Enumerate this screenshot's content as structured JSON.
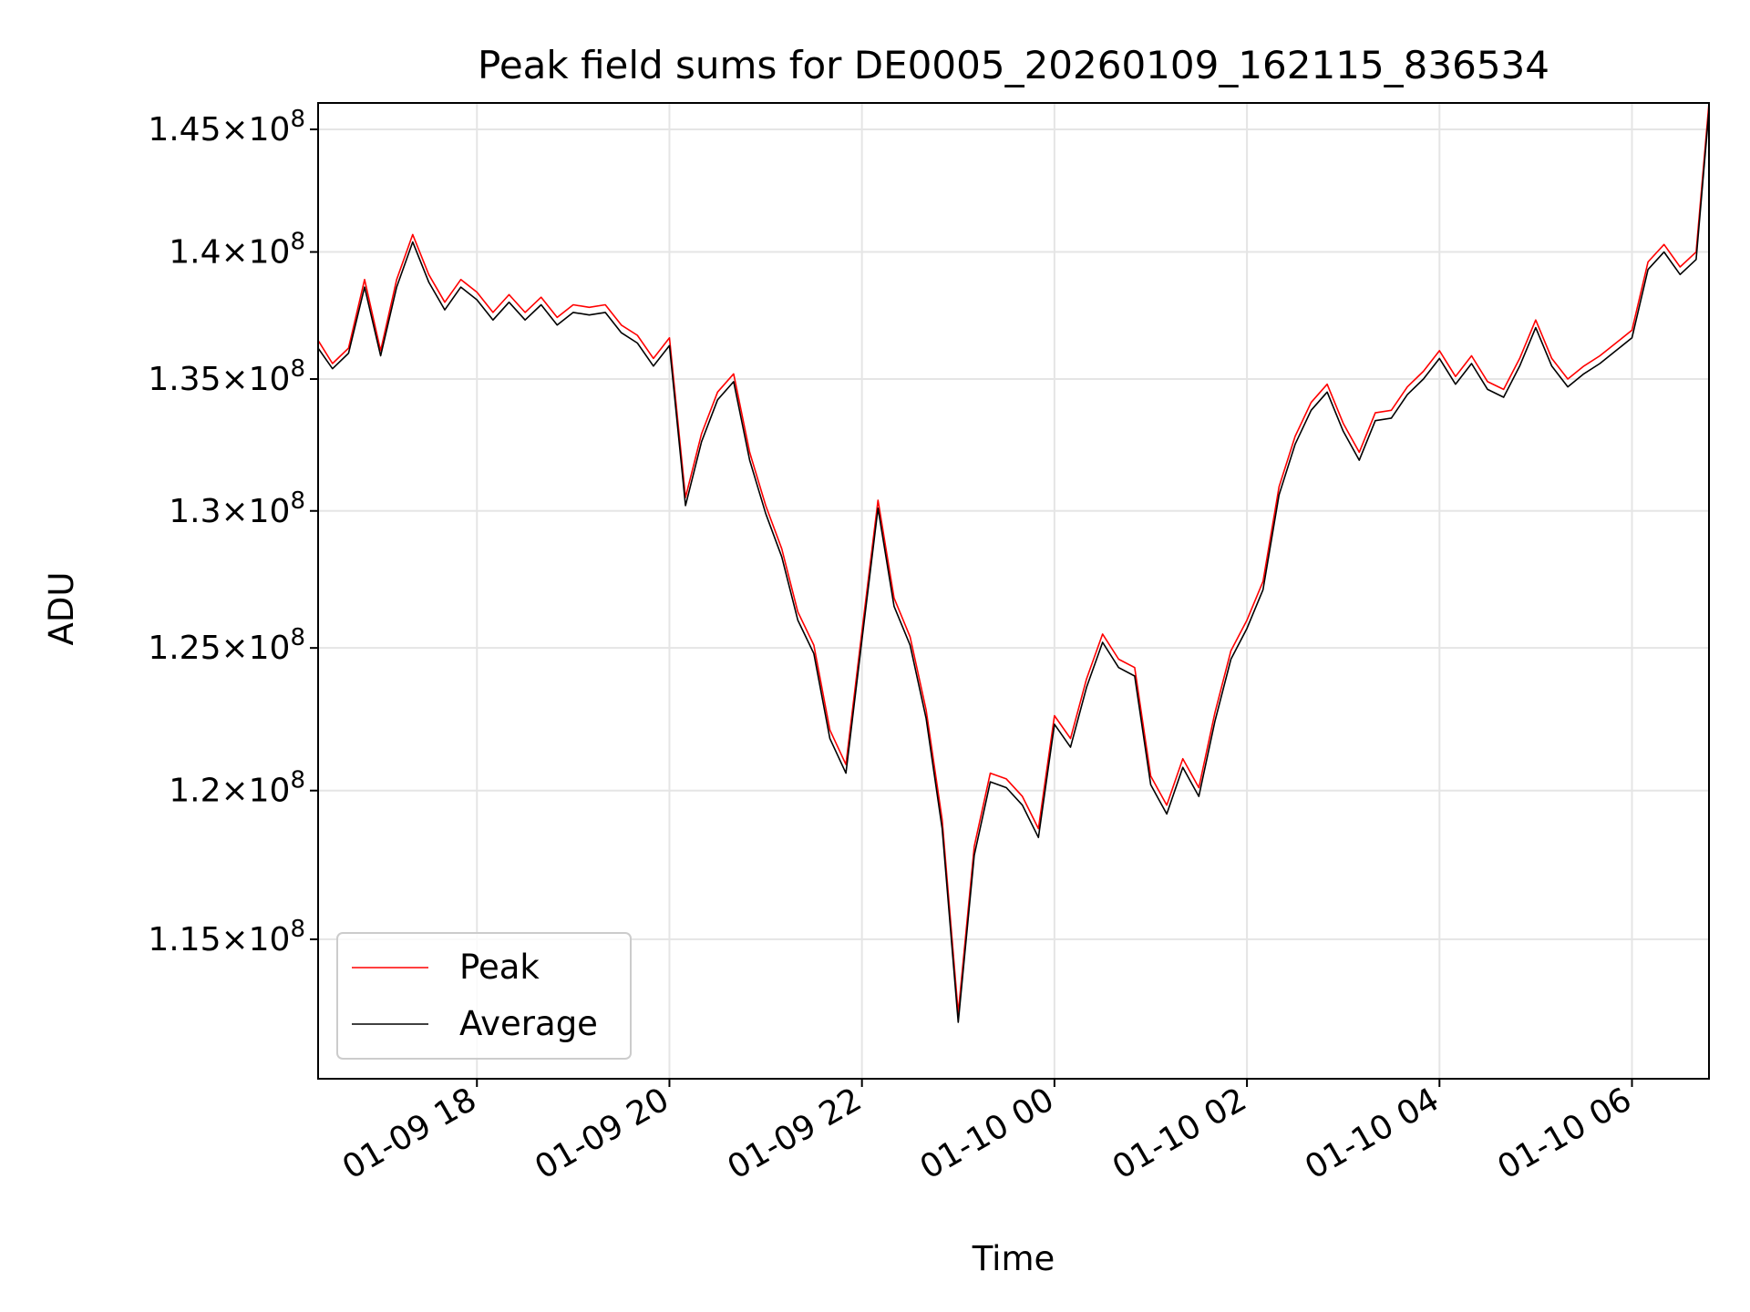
{
  "chart_data": {
    "type": "line",
    "title": "Peak field sums for DE0005_20260109_162115_836534",
    "xlabel": "Time",
    "ylabel": "ADU",
    "x_range": [
      "2026-01-09 16:21",
      "2026-01-10 06:48"
    ],
    "ylim": [
      110500000,
      146100000
    ],
    "y_scale": "log",
    "grid": true,
    "legend": "lower-left",
    "xticks": [
      "01-09 18",
      "01-09 20",
      "01-09 22",
      "01-10 00",
      "01-10 02",
      "01-10 04",
      "01-10 06"
    ],
    "ytick_values": [
      115000000,
      120000000,
      125000000,
      130000000,
      135000000,
      140000000,
      145000000
    ],
    "ytick_mantissas": [
      "1.15",
      "1.2",
      "1.25",
      "1.3",
      "1.35",
      "1.4",
      "1.45"
    ],
    "ytick_times": "×",
    "ytick_base": "10",
    "ytick_exponent": "8",
    "colors": {
      "peak": "#ff0000",
      "average": "#000000"
    },
    "series": [
      {
        "name": "Peak",
        "color": "#ff0000",
        "x": [
          "2026-01-09 16:21",
          "2026-01-09 16:30",
          "2026-01-09 16:40",
          "2026-01-09 16:50",
          "2026-01-09 17:00",
          "2026-01-09 17:10",
          "2026-01-09 17:20",
          "2026-01-09 17:30",
          "2026-01-09 17:40",
          "2026-01-09 17:50",
          "2026-01-09 18:00",
          "2026-01-09 18:10",
          "2026-01-09 18:20",
          "2026-01-09 18:30",
          "2026-01-09 18:40",
          "2026-01-09 18:50",
          "2026-01-09 19:00",
          "2026-01-09 19:10",
          "2026-01-09 19:20",
          "2026-01-09 19:30",
          "2026-01-09 19:40",
          "2026-01-09 19:50",
          "2026-01-09 20:00",
          "2026-01-09 20:10",
          "2026-01-09 20:20",
          "2026-01-09 20:30",
          "2026-01-09 20:40",
          "2026-01-09 20:50",
          "2026-01-09 21:00",
          "2026-01-09 21:10",
          "2026-01-09 21:20",
          "2026-01-09 21:30",
          "2026-01-09 21:40",
          "2026-01-09 21:50",
          "2026-01-09 22:00",
          "2026-01-09 22:10",
          "2026-01-09 22:20",
          "2026-01-09 22:30",
          "2026-01-09 22:40",
          "2026-01-09 22:50",
          "2026-01-09 23:00",
          "2026-01-09 23:10",
          "2026-01-09 23:20",
          "2026-01-09 23:30",
          "2026-01-09 23:40",
          "2026-01-09 23:50",
          "2026-01-10 00:00",
          "2026-01-10 00:10",
          "2026-01-10 00:20",
          "2026-01-10 00:30",
          "2026-01-10 00:40",
          "2026-01-10 00:50",
          "2026-01-10 01:00",
          "2026-01-10 01:10",
          "2026-01-10 01:20",
          "2026-01-10 01:30",
          "2026-01-10 01:40",
          "2026-01-10 01:50",
          "2026-01-10 02:00",
          "2026-01-10 02:10",
          "2026-01-10 02:20",
          "2026-01-10 02:30",
          "2026-01-10 02:40",
          "2026-01-10 02:50",
          "2026-01-10 03:00",
          "2026-01-10 03:10",
          "2026-01-10 03:20",
          "2026-01-10 03:30",
          "2026-01-10 03:40",
          "2026-01-10 03:50",
          "2026-01-10 04:00",
          "2026-01-10 04:10",
          "2026-01-10 04:20",
          "2026-01-10 04:30",
          "2026-01-10 04:40",
          "2026-01-10 04:50",
          "2026-01-10 05:00",
          "2026-01-10 05:10",
          "2026-01-10 05:20",
          "2026-01-10 05:30",
          "2026-01-10 05:40",
          "2026-01-10 05:50",
          "2026-01-10 06:00",
          "2026-01-10 06:10",
          "2026-01-10 06:20",
          "2026-01-10 06:30",
          "2026-01-10 06:40",
          "2026-01-10 06:48"
        ],
        "values": [
          136500000,
          135600000,
          136200000,
          138900000,
          136100000,
          138900000,
          140700000,
          139100000,
          138000000,
          138900000,
          138400000,
          137600000,
          138300000,
          137600000,
          138200000,
          137400000,
          137900000,
          137800000,
          137900000,
          137100000,
          136700000,
          135800000,
          136600000,
          130500000,
          132900000,
          134500000,
          135200000,
          132200000,
          130200000,
          128600000,
          126300000,
          125100000,
          122100000,
          120900000,
          125600000,
          130400000,
          126800000,
          125400000,
          122800000,
          119000000,
          112600000,
          118100000,
          120600000,
          120400000,
          119800000,
          118700000,
          122600000,
          121800000,
          123900000,
          125500000,
          124600000,
          124300000,
          120500000,
          119500000,
          121100000,
          120100000,
          122700000,
          124900000,
          126000000,
          127400000,
          130900000,
          132800000,
          134100000,
          134800000,
          133300000,
          132200000,
          133700000,
          133800000,
          134700000,
          135300000,
          136100000,
          135100000,
          135900000,
          134900000,
          134600000,
          135800000,
          137300000,
          135800000,
          135000000,
          135500000,
          135900000,
          136400000,
          136900000,
          139600000,
          140300000,
          139400000,
          140000000,
          146100000
        ]
      },
      {
        "name": "Average",
        "color": "#000000",
        "x": [
          "2026-01-09 16:21",
          "2026-01-09 16:30",
          "2026-01-09 16:40",
          "2026-01-09 16:50",
          "2026-01-09 17:00",
          "2026-01-09 17:10",
          "2026-01-09 17:20",
          "2026-01-09 17:30",
          "2026-01-09 17:40",
          "2026-01-09 17:50",
          "2026-01-09 18:00",
          "2026-01-09 18:10",
          "2026-01-09 18:20",
          "2026-01-09 18:30",
          "2026-01-09 18:40",
          "2026-01-09 18:50",
          "2026-01-09 19:00",
          "2026-01-09 19:10",
          "2026-01-09 19:20",
          "2026-01-09 19:30",
          "2026-01-09 19:40",
          "2026-01-09 19:50",
          "2026-01-09 20:00",
          "2026-01-09 20:10",
          "2026-01-09 20:20",
          "2026-01-09 20:30",
          "2026-01-09 20:40",
          "2026-01-09 20:50",
          "2026-01-09 21:00",
          "2026-01-09 21:10",
          "2026-01-09 21:20",
          "2026-01-09 21:30",
          "2026-01-09 21:40",
          "2026-01-09 21:50",
          "2026-01-09 22:00",
          "2026-01-09 22:10",
          "2026-01-09 22:20",
          "2026-01-09 22:30",
          "2026-01-09 22:40",
          "2026-01-09 22:50",
          "2026-01-09 23:00",
          "2026-01-09 23:10",
          "2026-01-09 23:20",
          "2026-01-09 23:30",
          "2026-01-09 23:40",
          "2026-01-09 23:50",
          "2026-01-10 00:00",
          "2026-01-10 00:10",
          "2026-01-10 00:20",
          "2026-01-10 00:30",
          "2026-01-10 00:40",
          "2026-01-10 00:50",
          "2026-01-10 01:00",
          "2026-01-10 01:10",
          "2026-01-10 01:20",
          "2026-01-10 01:30",
          "2026-01-10 01:40",
          "2026-01-10 01:50",
          "2026-01-10 02:00",
          "2026-01-10 02:10",
          "2026-01-10 02:20",
          "2026-01-10 02:30",
          "2026-01-10 02:40",
          "2026-01-10 02:50",
          "2026-01-10 03:00",
          "2026-01-10 03:10",
          "2026-01-10 03:20",
          "2026-01-10 03:30",
          "2026-01-10 03:40",
          "2026-01-10 03:50",
          "2026-01-10 04:00",
          "2026-01-10 04:10",
          "2026-01-10 04:20",
          "2026-01-10 04:30",
          "2026-01-10 04:40",
          "2026-01-10 04:50",
          "2026-01-10 05:00",
          "2026-01-10 05:10",
          "2026-01-10 05:20",
          "2026-01-10 05:30",
          "2026-01-10 05:40",
          "2026-01-10 05:50",
          "2026-01-10 06:00",
          "2026-01-10 06:10",
          "2026-01-10 06:20",
          "2026-01-10 06:30",
          "2026-01-10 06:40",
          "2026-01-10 06:48"
        ],
        "values": [
          136200000,
          135400000,
          136000000,
          138600000,
          135900000,
          138600000,
          140400000,
          138800000,
          137700000,
          138600000,
          138100000,
          137300000,
          138000000,
          137300000,
          137900000,
          137100000,
          137600000,
          137500000,
          137600000,
          136800000,
          136400000,
          135500000,
          136300000,
          130200000,
          132600000,
          134200000,
          134900000,
          131900000,
          129900000,
          128300000,
          126000000,
          124800000,
          121800000,
          120600000,
          125300000,
          130100000,
          126500000,
          125100000,
          122500000,
          118700000,
          112300000,
          117800000,
          120300000,
          120100000,
          119500000,
          118400000,
          122300000,
          121500000,
          123600000,
          125200000,
          124300000,
          124000000,
          120200000,
          119200000,
          120800000,
          119800000,
          122400000,
          124600000,
          125700000,
          127100000,
          130600000,
          132500000,
          133800000,
          134500000,
          133000000,
          131900000,
          133400000,
          133500000,
          134400000,
          135000000,
          135800000,
          134800000,
          135600000,
          134600000,
          134300000,
          135500000,
          137000000,
          135500000,
          134700000,
          135200000,
          135600000,
          136100000,
          136600000,
          139300000,
          140000000,
          139100000,
          139700000,
          145800000
        ]
      }
    ]
  }
}
